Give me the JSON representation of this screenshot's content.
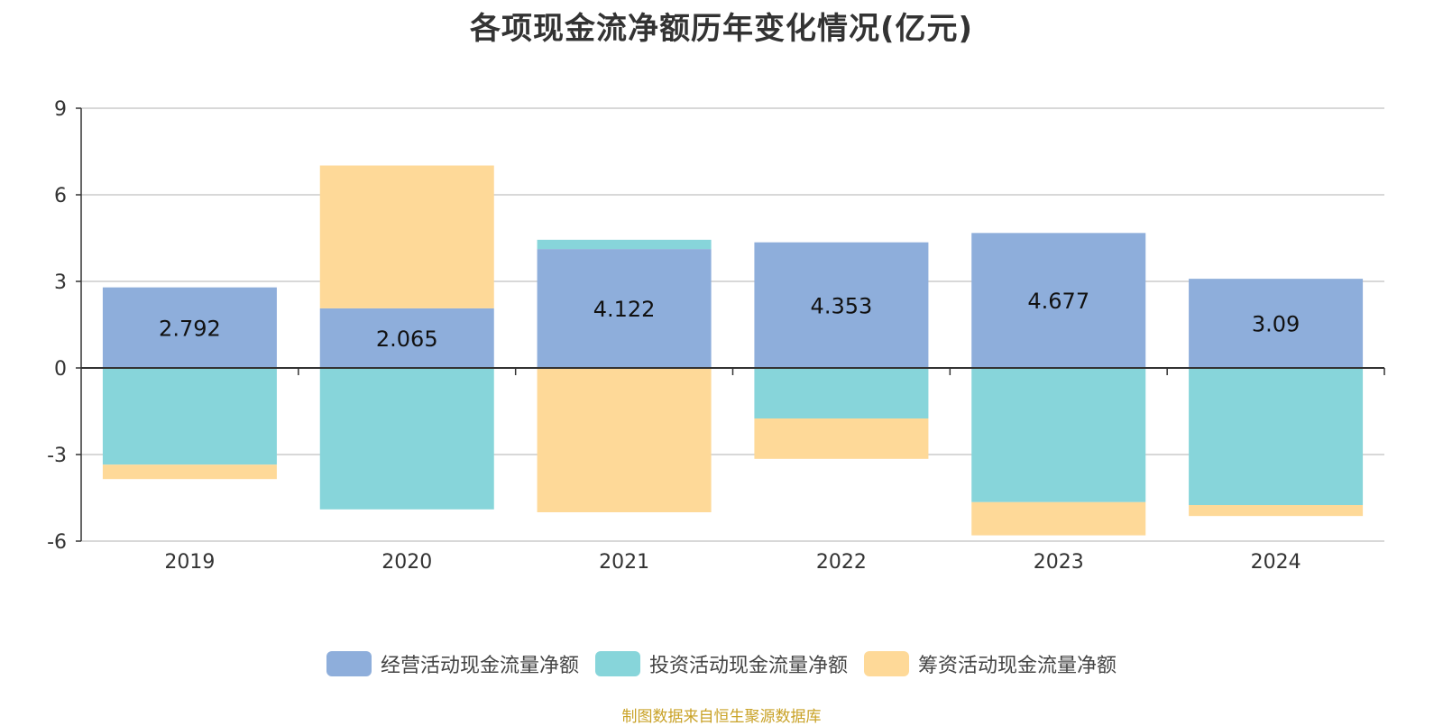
{
  "chart_data": {
    "type": "bar",
    "stacked": true,
    "title": "各项现金流净额历年变化情况(亿元)",
    "categories": [
      "2019",
      "2020",
      "2021",
      "2022",
      "2023",
      "2024"
    ],
    "series": [
      {
        "name": "经营活动现金流量净额",
        "color": "#8eaedb",
        "values": [
          2.792,
          2.065,
          4.122,
          4.353,
          4.677,
          3.09
        ]
      },
      {
        "name": "投资活动现金流量净额",
        "color": "#87d5da",
        "values": [
          -3.35,
          -4.9,
          0.32,
          -1.75,
          -4.65,
          -4.75
        ]
      },
      {
        "name": "筹资活动现金流量净额",
        "color": "#fed998",
        "values": [
          -0.5,
          4.95,
          -5.0,
          -1.4,
          -1.15,
          -0.38
        ]
      }
    ],
    "data_labels": [
      "2.792",
      "2.065",
      "4.122",
      "4.353",
      "4.677",
      "3.09"
    ],
    "yticks": [
      "9",
      "6",
      "3",
      "0",
      "-3",
      "-6"
    ],
    "ylim": [
      -6,
      9
    ],
    "grid": true,
    "legend_position": "bottom"
  },
  "source_note": "制图数据来自恒生聚源数据库"
}
